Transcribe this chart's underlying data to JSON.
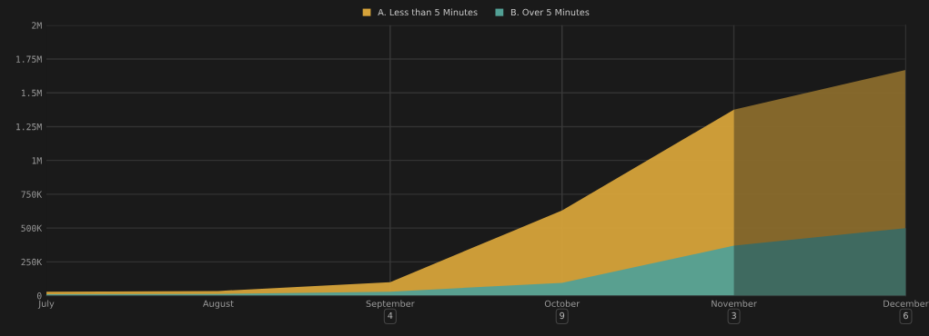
{
  "chart_data": {
    "type": "area",
    "categories": [
      "July",
      "August",
      "September",
      "October",
      "November",
      "December"
    ],
    "series": [
      {
        "name": "A. Less than 5 Minutes",
        "color": "#d6a33a",
        "values": [
          30000,
          35000,
          100000,
          630000,
          1375000,
          1670000
        ]
      },
      {
        "name": "B. Over 5 Minutes",
        "color": "#52a095",
        "values": [
          10000,
          12000,
          30000,
          95000,
          370000,
          500000
        ]
      }
    ],
    "ylim": [
      0,
      2000000
    ],
    "yticks": [
      0,
      {
        "value": 250000,
        "label": "250K"
      },
      {
        "value": 500000,
        "label": "500K"
      },
      {
        "value": 750000,
        "label": "750K"
      },
      {
        "value": 1000000,
        "label": "1M"
      },
      {
        "value": 1250000,
        "label": "1.25M"
      },
      {
        "value": 1500000,
        "label": "1.5M"
      },
      {
        "value": 1750000,
        "label": "1.75M"
      },
      {
        "value": 2000000,
        "label": "2M"
      }
    ],
    "grid": "y",
    "legend": "top",
    "ref_lines": [
      {
        "axis": "x",
        "value": "September",
        "label": "4"
      },
      {
        "axis": "x",
        "value": "October",
        "label": "9"
      },
      {
        "axis": "x",
        "value": "November",
        "label": "3"
      },
      {
        "axis": "x",
        "value": "December",
        "label": "6"
      }
    ],
    "bands": [
      {
        "axis": "x",
        "from": "November",
        "to": "December",
        "color": "#1a1a1a"
      }
    ]
  }
}
